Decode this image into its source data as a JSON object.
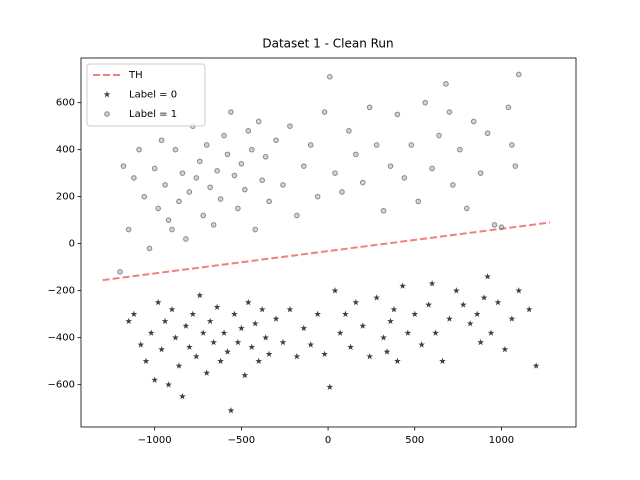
{
  "chart_data": {
    "type": "scatter",
    "title": "Dataset 1 - Clean Run",
    "xlim": [
      -1425,
      1430
    ],
    "ylim": [
      -780,
      790
    ],
    "xticks": [
      {
        "value": -1000,
        "label": "−1000"
      },
      {
        "value": -500,
        "label": "−500"
      },
      0,
      500,
      1000
    ],
    "yticks": [
      {
        "value": -600,
        "label": "−600"
      },
      {
        "value": -400,
        "label": "−400"
      },
      {
        "value": -200,
        "label": "−200"
      },
      0,
      200,
      400,
      600
    ],
    "legend": "upper left",
    "series": [
      {
        "name": "TH",
        "marker": "dashed-line",
        "color": "#f08080",
        "x": [
          -1300,
          1280
        ],
        "values": [
          -155,
          90
        ]
      },
      {
        "name": "Label = 0",
        "marker": "star",
        "color": "#000000",
        "x": [
          -1150,
          -1120,
          -1080,
          -1050,
          -1020,
          -1000,
          -980,
          -960,
          -940,
          -920,
          -900,
          -880,
          -860,
          -840,
          -820,
          -800,
          -780,
          -760,
          -740,
          -720,
          -700,
          -680,
          -660,
          -640,
          -620,
          -600,
          -580,
          -560,
          -540,
          -520,
          -500,
          -480,
          -460,
          -440,
          -420,
          -400,
          -380,
          -360,
          -340,
          -300,
          -260,
          -220,
          -180,
          -140,
          -100,
          -60,
          -20,
          10,
          40,
          70,
          100,
          130,
          160,
          200,
          240,
          280,
          320,
          340,
          360,
          380,
          400,
          430,
          460,
          500,
          540,
          580,
          620,
          660,
          700,
          740,
          780,
          820,
          860,
          880,
          900,
          940,
          980,
          1020,
          1060,
          1100,
          1160,
          1200,
          920,
          600
        ],
        "values": [
          -330,
          -300,
          -430,
          -500,
          -380,
          -580,
          -250,
          -450,
          -330,
          -600,
          -280,
          -400,
          -520,
          -650,
          -350,
          -440,
          -300,
          -480,
          -220,
          -380,
          -550,
          -330,
          -420,
          -270,
          -500,
          -380,
          -460,
          -710,
          -300,
          -420,
          -360,
          -560,
          -250,
          -440,
          -340,
          -500,
          -280,
          -400,
          -470,
          -320,
          -420,
          -280,
          -480,
          -360,
          -430,
          -300,
          -470,
          -610,
          -200,
          -380,
          -300,
          -440,
          -250,
          -350,
          -480,
          -230,
          -400,
          -460,
          -330,
          -280,
          -500,
          -180,
          -380,
          -300,
          -430,
          -260,
          -380,
          -500,
          -320,
          -200,
          -260,
          -340,
          -300,
          -420,
          -230,
          -380,
          -250,
          -450,
          -320,
          -200,
          -280,
          -520,
          -140,
          -170
        ]
      },
      {
        "name": "Label = 1",
        "marker": "circle",
        "color": "#808080",
        "x": [
          -1200,
          -1180,
          -1150,
          -1120,
          -1090,
          -1060,
          -1030,
          -1000,
          -980,
          -960,
          -940,
          -920,
          -900,
          -880,
          -860,
          -840,
          -820,
          -800,
          -780,
          -760,
          -740,
          -720,
          -700,
          -680,
          -660,
          -640,
          -620,
          -600,
          -580,
          -560,
          -540,
          -520,
          -500,
          -480,
          -460,
          -440,
          -420,
          -400,
          -380,
          -360,
          -340,
          -300,
          -260,
          -220,
          -180,
          -140,
          -100,
          -60,
          -20,
          10,
          40,
          80,
          120,
          160,
          200,
          240,
          280,
          320,
          360,
          400,
          440,
          480,
          520,
          560,
          600,
          640,
          680,
          720,
          760,
          800,
          840,
          880,
          920,
          960,
          1000,
          1040,
          1080,
          1100,
          1060,
          700
        ],
        "values": [
          -120,
          330,
          60,
          280,
          400,
          200,
          -20,
          320,
          150,
          440,
          250,
          100,
          60,
          400,
          180,
          300,
          20,
          220,
          500,
          280,
          350,
          120,
          420,
          240,
          80,
          310,
          190,
          460,
          380,
          560,
          290,
          150,
          340,
          230,
          480,
          400,
          60,
          520,
          270,
          370,
          180,
          440,
          250,
          500,
          120,
          330,
          420,
          200,
          560,
          710,
          300,
          220,
          480,
          380,
          260,
          580,
          420,
          140,
          330,
          550,
          280,
          420,
          180,
          600,
          320,
          460,
          680,
          250,
          400,
          150,
          520,
          300,
          470,
          80,
          70,
          580,
          330,
          720,
          420,
          560
        ]
      }
    ]
  }
}
